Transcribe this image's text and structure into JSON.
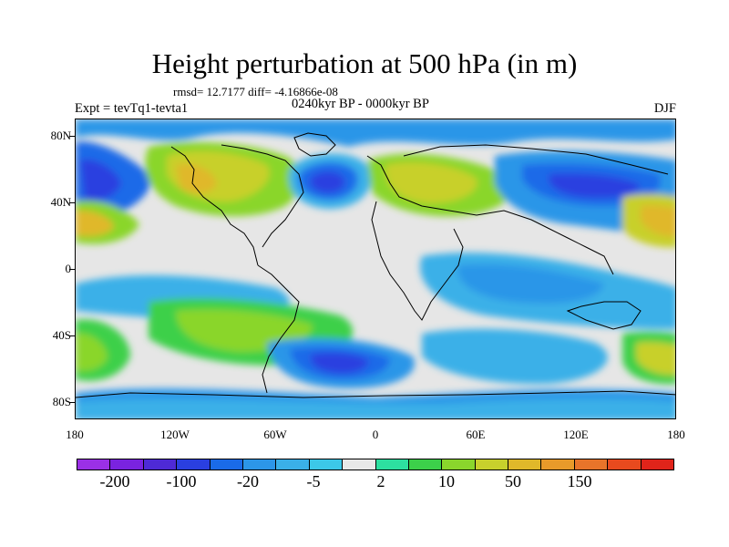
{
  "title": "Height perturbation at 500 hPa (in m)",
  "stats": "rmsd= 12.7177  diff= -4.16866e-08",
  "expt": "Expt = tevTq1-tevta1",
  "period": "0240kyr BP - 0000kyr BP",
  "season": "DJF",
  "lat_labels": [
    "80N",
    "40N",
    "0",
    "40S",
    "80S"
  ],
  "lon_labels": [
    "180",
    "120W",
    "60W",
    "0",
    "60E",
    "120E",
    "180"
  ],
  "colorbar": {
    "colors": [
      "#9b30e6",
      "#7a23e0",
      "#4e2ad6",
      "#2a3fe0",
      "#1a6be8",
      "#2c96e8",
      "#3ab0e8",
      "#3cc8e8",
      "#e8e8e8",
      "#2de0a0",
      "#3cd04a",
      "#8ad62c",
      "#c8d02c",
      "#e0b82a",
      "#e89a2a",
      "#e8742a",
      "#e84a1e",
      "#e0241a"
    ],
    "labels": [
      "-200",
      "-100",
      "-20",
      "-5",
      "2",
      "10",
      "50",
      "150"
    ]
  }
}
